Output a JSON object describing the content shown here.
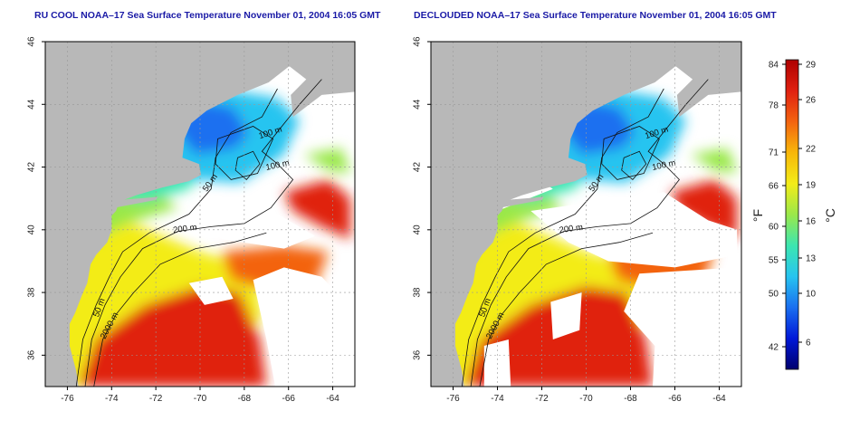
{
  "panels": [
    {
      "title": "RU COOL NOAA–17 Sea Surface Temperature November 01, 2004 16:05 GMT",
      "type": "raw"
    },
    {
      "title": "DECLOUDED NOAA–17 Sea Surface Temperature November 01, 2004 16:05 GMT",
      "type": "declouded"
    }
  ],
  "map": {
    "lon_range": [
      -77,
      -63
    ],
    "lat_range": [
      35,
      46
    ],
    "lon_ticks": [
      "-76",
      "-74",
      "-72",
      "-70",
      "-68",
      "-66",
      "-64"
    ],
    "lat_ticks": [
      "36",
      "38",
      "40",
      "42",
      "44",
      "46"
    ],
    "contour_labels": [
      "100 m",
      "100 m",
      "50 m",
      "200 m",
      "50 m",
      "2000 m"
    ],
    "colors": {
      "land": "#b8b8b8",
      "cloud": "#ffffff",
      "contour": "#111111",
      "grid": "#999999"
    }
  },
  "colorbar": {
    "f_ticks": [
      "84",
      "78",
      "71",
      "66",
      "60",
      "55",
      "50",
      "42"
    ],
    "c_ticks": [
      "29",
      "26",
      "22",
      "19",
      "16",
      "13",
      "10",
      "6"
    ],
    "f_unit": "°F",
    "c_unit": "°C",
    "colors": [
      "#00006e",
      "#0018d8",
      "#1a6ff0",
      "#27c4f0",
      "#3ce6b0",
      "#9ae84a",
      "#f3ec18",
      "#f8b70a",
      "#f36410",
      "#e02010",
      "#ae0000"
    ]
  }
}
